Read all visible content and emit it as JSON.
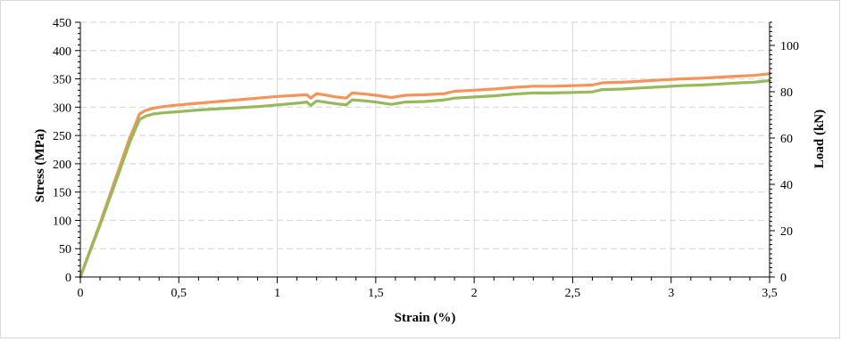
{
  "chart_data": {
    "type": "line",
    "title": "",
    "xlabel": "Strain (%)",
    "ylabel": "Stress (MPa)",
    "y2label": "Load (kN)",
    "xlim": [
      0,
      3.5
    ],
    "ylim": [
      0,
      450
    ],
    "y2lim": [
      0,
      110
    ],
    "x_ticks": [
      "0",
      "0,5",
      "1",
      "1,5",
      "2",
      "2,5",
      "3",
      "3,5"
    ],
    "y_ticks": [
      "0",
      "50",
      "100",
      "150",
      "200",
      "250",
      "300",
      "350",
      "400",
      "450"
    ],
    "y2_ticks": [
      "0",
      "20",
      "40",
      "60",
      "80",
      "100"
    ],
    "grid": {
      "x": true,
      "y": true,
      "y_style": "dashed"
    },
    "series": [
      {
        "color": "#f4935a",
        "axis": "left",
        "x": [
          0,
          0.05,
          0.1,
          0.15,
          0.2,
          0.25,
          0.28,
          0.3,
          0.33,
          0.37,
          0.42,
          0.5,
          0.6,
          0.7,
          0.8,
          0.9,
          1.0,
          1.1,
          1.15,
          1.17,
          1.2,
          1.3,
          1.35,
          1.38,
          1.45,
          1.5,
          1.58,
          1.65,
          1.75,
          1.85,
          1.9,
          2.0,
          2.1,
          2.2,
          2.3,
          2.4,
          2.5,
          2.6,
          2.65,
          2.75,
          2.85,
          2.95,
          3.05,
          3.15,
          3.25,
          3.35,
          3.42,
          3.5
        ],
        "y": [
          0,
          48,
          95,
          145,
          195,
          245,
          270,
          288,
          294,
          298,
          301,
          304,
          307,
          310,
          313,
          316,
          319,
          321,
          322,
          316,
          324,
          318,
          316,
          325,
          323,
          321,
          317,
          321,
          322,
          324,
          328,
          330,
          332,
          335,
          337,
          337,
          338,
          339,
          343,
          344,
          346,
          348,
          350,
          351,
          353,
          355,
          356,
          359
        ]
      },
      {
        "color": "#97b95b",
        "axis": "left",
        "x": [
          0,
          0.05,
          0.1,
          0.15,
          0.2,
          0.25,
          0.28,
          0.3,
          0.33,
          0.37,
          0.42,
          0.5,
          0.6,
          0.7,
          0.8,
          0.9,
          1.0,
          1.1,
          1.15,
          1.17,
          1.2,
          1.3,
          1.35,
          1.38,
          1.45,
          1.5,
          1.58,
          1.65,
          1.75,
          1.85,
          1.9,
          2.0,
          2.1,
          2.2,
          2.3,
          2.4,
          2.5,
          2.6,
          2.65,
          2.75,
          2.85,
          2.95,
          3.05,
          3.15,
          3.25,
          3.35,
          3.42,
          3.5
        ],
        "y": [
          0,
          46,
          92,
          140,
          188,
          237,
          262,
          278,
          284,
          288,
          290,
          292,
          295,
          297,
          299,
          301,
          304,
          307,
          309,
          303,
          311,
          306,
          304,
          313,
          311,
          309,
          305,
          309,
          310,
          313,
          316,
          318,
          320,
          323,
          325,
          325,
          326,
          327,
          331,
          332,
          334,
          336,
          338,
          339,
          341,
          343,
          344,
          347
        ]
      }
    ],
    "legend": "none"
  }
}
